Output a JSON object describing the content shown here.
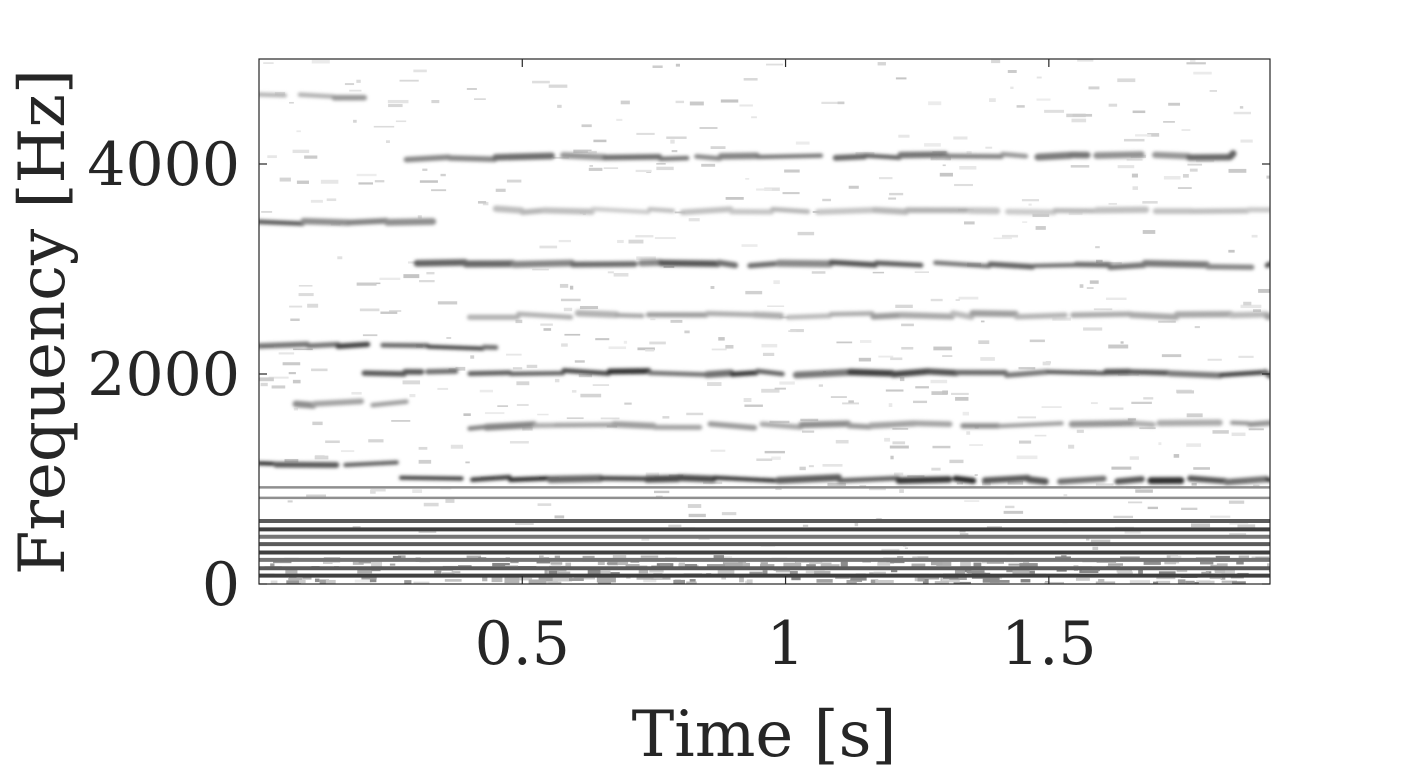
{
  "chart_data": {
    "type": "heatmap",
    "title": "",
    "xlabel": "Time [s]",
    "ylabel": "Frequency [Hz]",
    "xlim": [
      0.0,
      1.92
    ],
    "ylim": [
      0,
      5000
    ],
    "xticks": [
      0.5,
      1,
      1.5
    ],
    "xtick_labels": [
      "0.5",
      "1",
      "1.5"
    ],
    "yticks": [
      0,
      2000,
      4000
    ],
    "ytick_labels": [
      "0",
      "2000",
      "4000"
    ],
    "colormap": "gray-reversed",
    "grid": false,
    "harmonic_tracks": [
      {
        "segments": [
          [
            0.0,
            0.27,
            1140,
            1140
          ],
          [
            0.27,
            1.92,
            1000,
            990
          ]
        ],
        "intensity": 0.95
      },
      {
        "segments": [
          [
            0.0,
            0.15,
            2280,
            2280
          ],
          [
            0.15,
            0.45,
            2280,
            2260
          ],
          [
            0.2,
            1.92,
            2020,
            2000
          ]
        ],
        "intensity": 0.9
      },
      {
        "segments": [
          [
            0.3,
            1.92,
            3060,
            3030
          ]
        ],
        "intensity": 0.8
      },
      {
        "segments": [
          [
            0.0,
            0.33,
            3450,
            3450
          ]
        ],
        "intensity": 0.75
      },
      {
        "segments": [
          [
            0.28,
            1.85,
            4060,
            4080
          ]
        ],
        "intensity": 0.7
      },
      {
        "segments": [
          [
            0.0,
            0.2,
            4650,
            4650
          ]
        ],
        "intensity": 0.5
      },
      {
        "segments": [
          [
            0.07,
            0.28,
            1720,
            1720
          ],
          [
            0.4,
            1.92,
            1500,
            1520
          ]
        ],
        "intensity": 0.55
      },
      {
        "segments": [
          [
            0.4,
            1.92,
            2560,
            2560
          ]
        ],
        "intensity": 0.45
      },
      {
        "segments": [
          [
            0.45,
            1.92,
            3560,
            3560
          ]
        ],
        "intensity": 0.35
      }
    ],
    "low_frequency_bands_hz": [
      80,
      150,
      230,
      300,
      380,
      450,
      520,
      600,
      820,
      920
    ]
  }
}
